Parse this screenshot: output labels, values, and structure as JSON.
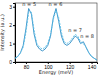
{
  "chart_data": {
    "type": "line",
    "x_label": "Energy (meV)",
    "y_label": "Intensity (a.u.)",
    "x": [
      70,
      72.5,
      75,
      77.5,
      80,
      82.5,
      85,
      87.5,
      90,
      92.5,
      95,
      97.5,
      100,
      102.5,
      105,
      107.5,
      110,
      112.5,
      115,
      117.5,
      120,
      122.5,
      125,
      127.5,
      130,
      132.5,
      135,
      137.5,
      140,
      142.5,
      145
    ],
    "series": [
      {
        "color": "#2a8ac4",
        "line_style": "solid",
        "values": [
          0.2,
          0.3,
          0.5,
          0.9,
          1.8,
          2.9,
          2.6,
          1.5,
          0.9,
          0.7,
          0.6,
          0.7,
          0.9,
          1.4,
          2.4,
          2.9,
          2.2,
          1.4,
          1.0,
          0.9,
          1.0,
          1.2,
          1.4,
          1.3,
          1.0,
          1.1,
          0.8,
          0.5,
          0.3,
          0.2,
          0.1
        ]
      },
      {
        "color": "#5bc0e8",
        "line_style": "dashed",
        "values": [
          0.2,
          0.3,
          0.5,
          0.8,
          1.6,
          2.7,
          2.7,
          1.7,
          1.0,
          0.8,
          0.7,
          0.8,
          1.0,
          1.5,
          2.3,
          2.8,
          2.4,
          1.6,
          1.1,
          1.0,
          1.1,
          1.3,
          1.5,
          1.4,
          1.1,
          1.0,
          0.8,
          0.5,
          0.3,
          0.2,
          0.1
        ]
      }
    ],
    "annotations": [
      {
        "text": "n = 5",
        "x": 83,
        "y": 3.0
      },
      {
        "text": "n = 6",
        "x": 107,
        "y": 3.0
      },
      {
        "text": "n = 7",
        "x": 125,
        "y": 1.6
      },
      {
        "text": "n = 8",
        "x": 136,
        "y": 1.25
      }
    ],
    "xlim": [
      70,
      145
    ],
    "xticks": [
      80,
      100,
      120,
      140
    ],
    "ylim": [
      0,
      3.2
    ],
    "yticks": [
      0,
      1,
      2,
      3
    ]
  }
}
